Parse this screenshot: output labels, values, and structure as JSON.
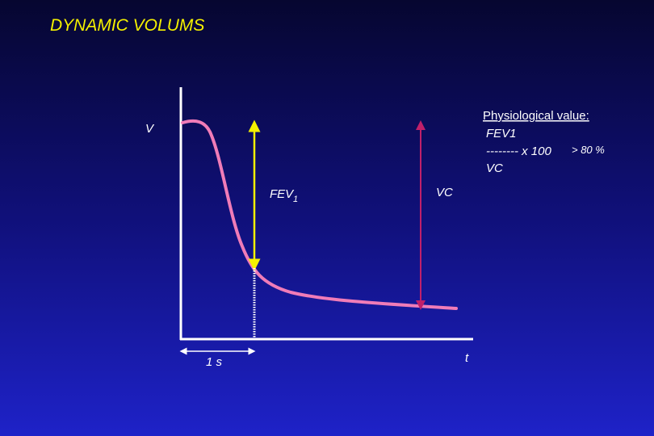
{
  "title": "DYNAMIC  VOLUMS",
  "labels": {
    "v": "V",
    "fev": "FEV",
    "fev_sub": "1",
    "vc": "VC",
    "one_second": "1 s",
    "t": "t"
  },
  "note": {
    "heading": "Physiological value:",
    "numerator": "FEV1",
    "fraction": "-------- x 100",
    "denominator": "VC",
    "threshold": "> 80 %"
  }
}
